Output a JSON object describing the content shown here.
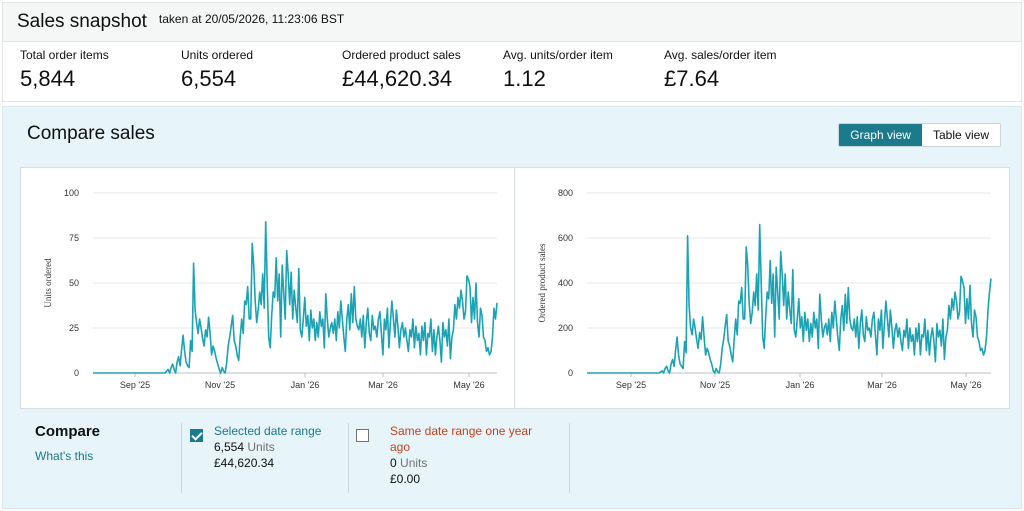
{
  "header": {
    "title": "Sales snapshot",
    "timestamp": "taken at 20/05/2026, 11:23:06 BST"
  },
  "metrics": [
    {
      "label": "Total order items",
      "value": "5,844"
    },
    {
      "label": "Units ordered",
      "value": "6,554"
    },
    {
      "label": "Ordered product sales",
      "value": "£44,620.34"
    },
    {
      "label": "Avg. units/order item",
      "value": "1.12"
    },
    {
      "label": "Avg. sales/order item",
      "value": "£7.64"
    }
  ],
  "compare": {
    "title": "Compare sales",
    "graph_view": "Graph view",
    "table_view": "Table view",
    "heading": "Compare",
    "whats_this": "What's this",
    "selected": {
      "name": "Selected date range",
      "units_value": "6,554",
      "units_label": "Units",
      "sales": "£44,620.34",
      "checked": true
    },
    "previous": {
      "name_line1": "Same date range one year",
      "name_line2": "ago",
      "units_value": "0",
      "units_label": "Units",
      "sales": "£0.00",
      "checked": false
    }
  },
  "colors": {
    "line": "#1ba3b4",
    "accent": "#1b7a8c",
    "red_label": "#c7421e"
  },
  "chart_data": [
    {
      "type": "line",
      "ylabel": "Units ordered",
      "ylim": [
        0,
        100
      ],
      "yticks": [
        "0",
        "25",
        "50",
        "75",
        "100"
      ],
      "xticks": [
        "Sep '25",
        "Nov '25",
        "Jan '26",
        "Mar '26",
        "May '26"
      ],
      "grid": true,
      "series": [
        {
          "values": [
            0,
            0,
            0,
            0,
            0,
            0,
            0,
            0,
            0,
            0,
            0,
            0,
            0,
            0,
            0,
            0,
            0,
            0,
            0,
            0,
            0,
            0,
            0,
            0,
            0,
            0,
            0,
            0,
            0,
            0,
            0,
            0,
            0,
            0,
            0,
            0,
            0,
            0,
            0,
            0,
            0,
            0,
            0,
            0,
            0,
            0,
            0,
            0,
            0,
            1,
            2,
            0,
            3,
            5,
            2,
            0,
            6,
            9,
            4,
            13,
            21,
            12,
            6,
            4,
            3,
            18,
            12,
            61,
            35,
            28,
            22,
            30,
            25,
            19,
            15,
            24,
            20,
            31,
            22,
            10,
            15,
            12,
            8,
            5,
            2,
            0,
            3,
            1,
            0,
            6,
            15,
            20,
            26,
            32,
            18,
            15,
            10,
            7,
            20,
            30,
            22,
            40,
            38,
            48,
            30,
            30,
            72,
            60,
            40,
            28,
            35,
            45,
            38,
            55,
            36,
            84,
            50,
            20,
            14,
            32,
            45,
            42,
            64,
            40,
            55,
            20,
            60,
            45,
            30,
            68,
            55,
            38,
            56,
            30,
            46,
            36,
            28,
            58,
            24,
            20,
            30,
            42,
            26,
            32,
            18,
            35,
            25,
            30,
            18,
            28,
            20,
            34,
            26,
            30,
            14,
            44,
            30,
            20,
            25,
            28,
            22,
            30,
            18,
            34,
            25,
            40,
            30,
            20,
            12,
            30,
            38,
            24,
            44,
            28,
            48,
            30,
            26,
            24,
            30,
            20,
            32,
            14,
            28,
            36,
            22,
            18,
            32,
            24,
            26,
            20,
            30,
            34,
            22,
            10,
            30,
            24,
            36,
            14,
            28,
            40,
            30,
            20,
            35,
            26,
            14,
            24,
            28,
            20,
            25,
            18,
            12,
            24,
            20,
            30,
            14,
            26,
            18,
            22,
            10,
            26,
            18,
            28,
            10,
            22,
            20,
            30,
            12,
            24,
            10,
            20,
            26,
            18,
            6,
            28,
            20,
            24,
            15,
            30,
            8,
            20,
            24,
            38,
            30,
            42,
            36,
            46,
            40,
            30,
            34,
            54,
            52,
            48,
            28,
            42,
            30,
            50,
            28,
            20,
            36,
            32,
            20,
            18,
            12,
            14,
            10,
            12,
            20,
            36,
            30,
            39
          ]
        }
      ]
    },
    {
      "type": "line",
      "ylabel": "Ordered product sales",
      "ylim": [
        0,
        800
      ],
      "yticks": [
        "0",
        "200",
        "400",
        "600",
        "800"
      ],
      "xticks": [
        "Sep '25",
        "Nov '25",
        "Jan '26",
        "Mar '26",
        "May '26"
      ],
      "grid": true,
      "series": [
        {
          "values": [
            0,
            0,
            0,
            0,
            0,
            0,
            0,
            0,
            0,
            0,
            0,
            0,
            0,
            0,
            0,
            0,
            0,
            0,
            0,
            0,
            0,
            0,
            0,
            0,
            0,
            0,
            0,
            0,
            0,
            0,
            0,
            0,
            0,
            0,
            0,
            0,
            0,
            0,
            0,
            0,
            0,
            0,
            0,
            0,
            0,
            0,
            0,
            0,
            0,
            4,
            10,
            0,
            20,
            30,
            10,
            0,
            40,
            60,
            30,
            100,
            160,
            80,
            40,
            30,
            20,
            140,
            90,
            610,
            300,
            200,
            170,
            240,
            200,
            150,
            110,
            180,
            150,
            250,
            160,
            80,
            110,
            90,
            60,
            40,
            10,
            0,
            20,
            5,
            0,
            40,
            110,
            150,
            210,
            260,
            140,
            120,
            80,
            50,
            150,
            240,
            170,
            320,
            310,
            380,
            240,
            240,
            560,
            480,
            310,
            220,
            270,
            360,
            300,
            440,
            280,
            660,
            400,
            160,
            110,
            250,
            360,
            330,
            500,
            310,
            440,
            160,
            470,
            360,
            240,
            540,
            440,
            300,
            440,
            240,
            360,
            280,
            220,
            460,
            190,
            160,
            240,
            330,
            200,
            250,
            140,
            270,
            190,
            240,
            140,
            220,
            160,
            270,
            200,
            240,
            110,
            350,
            240,
            160,
            200,
            220,
            170,
            240,
            140,
            270,
            200,
            320,
            240,
            160,
            100,
            240,
            300,
            190,
            350,
            220,
            380,
            240,
            200,
            190,
            240,
            160,
            250,
            110,
            220,
            280,
            170,
            140,
            250,
            190,
            200,
            160,
            240,
            270,
            170,
            80,
            240,
            190,
            280,
            110,
            220,
            320,
            240,
            160,
            280,
            200,
            110,
            190,
            220,
            160,
            200,
            140,
            100,
            190,
            160,
            240,
            110,
            200,
            140,
            170,
            80,
            200,
            140,
            220,
            80,
            170,
            160,
            240,
            100,
            190,
            80,
            160,
            200,
            140,
            50,
            220,
            160,
            190,
            120,
            240,
            60,
            160,
            190,
            300,
            240,
            330,
            280,
            360,
            320,
            240,
            270,
            430,
            410,
            380,
            220,
            330,
            240,
            390,
            220,
            160,
            280,
            250,
            160,
            140,
            100,
            110,
            80,
            100,
            160,
            280,
            360,
            420
          ]
        }
      ]
    }
  ]
}
